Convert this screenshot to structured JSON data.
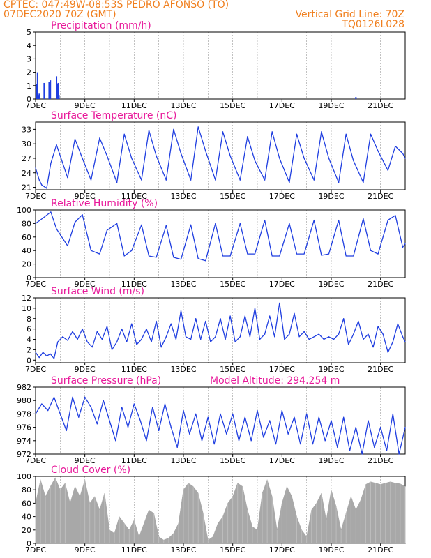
{
  "header": {
    "line1": "CPTEC:  047:49W-08:53S  PEDRO AFONSO (TO)",
    "line2_left": "07DEC2020 70Z (GMT)",
    "line2_right": "Vertical Grid Line: 70Z",
    "code": "TQ0126L028"
  },
  "colors": {
    "header": "#f07f1e",
    "title": "#e8199a",
    "line": "#1f3ee0",
    "cloud": "#a8a8a8",
    "axis": "#000000",
    "grid": "#999999"
  },
  "chart_data": [
    {
      "id": "precip",
      "type": "bar",
      "title": "Precipitation (mm/h)",
      "ylim": [
        0,
        5
      ],
      "yticks": [
        0,
        1,
        2,
        3,
        4,
        5
      ],
      "x_range_days": [
        7,
        22
      ],
      "xtick_labels": [
        "7DEC",
        "9DEC",
        "11DEC",
        "13DEC",
        "15DEC",
        "17DEC",
        "19DEC",
        "21DEC"
      ],
      "x": [
        7.05,
        7.08,
        7.12,
        7.15,
        7.35,
        7.55,
        7.6,
        7.85,
        7.88,
        7.92,
        7.95,
        20.0
      ],
      "values": [
        1.1,
        2.0,
        0.3,
        0.4,
        1.2,
        1.3,
        1.4,
        1.7,
        1.1,
        1.2,
        0.3,
        0.15
      ]
    },
    {
      "id": "temp",
      "type": "line",
      "title": "Surface Temperature (nC)",
      "ylim": [
        20.5,
        34.5
      ],
      "yticks": [
        21,
        24,
        27,
        30,
        33
      ],
      "x_range_days": [
        7,
        22
      ],
      "xtick_labels": [
        "7DEC",
        "9DEC",
        "11DEC",
        "13DEC",
        "15DEC",
        "17DEC",
        "19DEC",
        "21DEC"
      ],
      "x": [
        7.0,
        7.15,
        7.25,
        7.45,
        7.62,
        7.85,
        8.3,
        8.6,
        8.9,
        9.25,
        9.6,
        9.9,
        10.3,
        10.6,
        10.9,
        11.3,
        11.6,
        11.9,
        12.3,
        12.6,
        12.9,
        13.3,
        13.6,
        13.9,
        14.3,
        14.6,
        14.9,
        15.3,
        15.6,
        15.9,
        16.3,
        16.6,
        16.9,
        17.3,
        17.6,
        17.9,
        18.3,
        18.6,
        18.9,
        19.3,
        19.6,
        19.9,
        20.3,
        20.6,
        20.9,
        21.3,
        21.6,
        21.9,
        22.0
      ],
      "values": [
        25.0,
        22.5,
        21.5,
        20.8,
        26.0,
        29.8,
        23.0,
        31.0,
        27.0,
        22.5,
        31.2,
        27.5,
        22.0,
        32.0,
        27.0,
        22.5,
        32.8,
        27.5,
        22.5,
        33.0,
        28.0,
        22.5,
        33.5,
        28.5,
        22.5,
        32.5,
        27.5,
        22.5,
        31.5,
        26.5,
        22.5,
        32.5,
        27.0,
        22.0,
        32.0,
        27.0,
        22.5,
        32.5,
        27.0,
        22.0,
        32.0,
        26.5,
        22.0,
        32.0,
        28.5,
        24.5,
        29.5,
        28.0,
        27.0
      ]
    },
    {
      "id": "rh",
      "type": "line",
      "title": "Relative Humidity (%)",
      "ylim": [
        0,
        100
      ],
      "yticks": [
        0,
        20,
        40,
        60,
        80,
        100
      ],
      "x_range_days": [
        7,
        22
      ],
      "xtick_labels": [
        "7DEC",
        "9DEC",
        "11DEC",
        "13DEC",
        "15DEC",
        "17DEC",
        "19DEC",
        "21DEC"
      ],
      "x": [
        7.0,
        7.3,
        7.62,
        7.85,
        8.3,
        8.6,
        8.9,
        9.25,
        9.6,
        9.9,
        10.3,
        10.6,
        10.9,
        11.3,
        11.6,
        11.9,
        12.3,
        12.6,
        12.9,
        13.3,
        13.6,
        13.9,
        14.3,
        14.6,
        14.9,
        15.3,
        15.6,
        15.9,
        16.3,
        16.6,
        16.9,
        17.3,
        17.6,
        17.9,
        18.3,
        18.6,
        18.9,
        19.3,
        19.6,
        19.9,
        20.3,
        20.6,
        20.9,
        21.3,
        21.6,
        21.9,
        22.0
      ],
      "values": [
        80,
        88,
        97,
        72,
        47,
        82,
        93,
        40,
        35,
        70,
        80,
        32,
        40,
        78,
        32,
        30,
        77,
        30,
        27,
        78,
        28,
        25,
        80,
        32,
        32,
        80,
        35,
        35,
        85,
        32,
        32,
        80,
        35,
        35,
        85,
        33,
        35,
        85,
        32,
        32,
        87,
        40,
        35,
        85,
        92,
        45,
        50
      ]
    },
    {
      "id": "wind",
      "type": "line",
      "title": "Surface Wind (m/s)",
      "ylim": [
        -0.5,
        12
      ],
      "yticks": [
        0,
        2,
        4,
        6,
        8,
        10,
        12
      ],
      "x_range_days": [
        7,
        22
      ],
      "xtick_labels": [
        "7DEC",
        "9DEC",
        "11DEC",
        "13DEC",
        "15DEC",
        "17DEC",
        "19DEC",
        "21DEC"
      ],
      "x": [
        7.0,
        7.15,
        7.3,
        7.45,
        7.6,
        7.75,
        7.9,
        8.1,
        8.3,
        8.5,
        8.7,
        8.9,
        9.1,
        9.3,
        9.5,
        9.7,
        9.9,
        10.1,
        10.3,
        10.5,
        10.7,
        10.9,
        11.1,
        11.3,
        11.5,
        11.7,
        11.9,
        12.1,
        12.3,
        12.5,
        12.7,
        12.9,
        13.1,
        13.3,
        13.5,
        13.7,
        13.9,
        14.1,
        14.3,
        14.5,
        14.7,
        14.9,
        15.1,
        15.3,
        15.5,
        15.7,
        15.9,
        16.1,
        16.3,
        16.5,
        16.7,
        16.9,
        17.1,
        17.3,
        17.5,
        17.7,
        17.9,
        18.1,
        18.3,
        18.5,
        18.7,
        18.9,
        19.1,
        19.3,
        19.5,
        19.7,
        19.9,
        20.1,
        20.3,
        20.5,
        20.7,
        20.9,
        21.1,
        21.3,
        21.5,
        21.7,
        21.9,
        22.0
      ],
      "values": [
        1.5,
        0.5,
        1.5,
        0.8,
        1.2,
        0.3,
        3.5,
        4.5,
        3.8,
        5.5,
        4.0,
        6.0,
        3.5,
        2.5,
        5.5,
        4.0,
        6.5,
        2.0,
        3.5,
        6.0,
        3.5,
        7.0,
        3.0,
        4.0,
        6.0,
        3.5,
        7.5,
        2.5,
        4.5,
        7.0,
        4.0,
        9.5,
        4.5,
        4.0,
        8.0,
        4.0,
        7.5,
        3.5,
        4.5,
        8.0,
        4.0,
        8.5,
        3.5,
        4.5,
        8.5,
        4.5,
        10.0,
        4.0,
        5.0,
        8.5,
        4.5,
        11.0,
        4.0,
        5.0,
        9.0,
        4.5,
        5.5,
        4.0,
        4.5,
        5.0,
        4.0,
        4.5,
        4.0,
        5.0,
        8.0,
        3.0,
        5.0,
        7.5,
        4.0,
        5.0,
        2.5,
        6.5,
        5.0,
        1.5,
        3.5,
        7.0,
        4.5,
        3.5
      ]
    },
    {
      "id": "pres",
      "type": "line",
      "title": "Surface Pressure (hPa)",
      "subtitle": "Model Altitude: 294.254 m",
      "ylim": [
        972,
        982
      ],
      "yticks": [
        972,
        974,
        976,
        978,
        980,
        982
      ],
      "x_range_days": [
        7,
        22
      ],
      "xtick_labels": [
        "7DEC",
        "9DEC",
        "11DEC",
        "13DEC",
        "15DEC",
        "17DEC",
        "19DEC",
        "21DEC"
      ],
      "x": [
        7.0,
        7.25,
        7.5,
        7.75,
        8.0,
        8.25,
        8.5,
        8.75,
        9.0,
        9.25,
        9.5,
        9.75,
        10.0,
        10.25,
        10.5,
        10.75,
        11.0,
        11.25,
        11.5,
        11.75,
        12.0,
        12.25,
        12.5,
        12.75,
        13.0,
        13.25,
        13.5,
        13.75,
        14.0,
        14.25,
        14.5,
        14.75,
        15.0,
        15.25,
        15.5,
        15.75,
        16.0,
        16.25,
        16.5,
        16.75,
        17.0,
        17.25,
        17.5,
        17.75,
        18.0,
        18.25,
        18.5,
        18.75,
        19.0,
        19.25,
        19.5,
        19.75,
        20.0,
        20.25,
        20.5,
        20.75,
        21.0,
        21.25,
        21.5,
        21.75,
        22.0
      ],
      "values": [
        978.0,
        979.5,
        978.5,
        980.5,
        978.0,
        975.5,
        980.5,
        977.5,
        980.5,
        979.0,
        976.5,
        980.0,
        977.0,
        974.0,
        979.0,
        976.0,
        979.5,
        977.0,
        974.0,
        979.0,
        975.5,
        979.5,
        976.0,
        973.0,
        978.5,
        975.0,
        978.0,
        974.0,
        977.5,
        973.5,
        978.0,
        975.0,
        978.0,
        974.0,
        977.5,
        974.0,
        978.5,
        974.5,
        977.0,
        973.5,
        978.5,
        975.0,
        977.5,
        973.5,
        978.0,
        973.5,
        977.5,
        974.0,
        977.0,
        973.0,
        977.5,
        972.5,
        976.0,
        972.0,
        977.0,
        973.0,
        976.0,
        972.5,
        978.0,
        972.0,
        976.0
      ]
    },
    {
      "id": "cloud",
      "type": "area",
      "title": "Cloud Cover (%)",
      "ylim": [
        0,
        100
      ],
      "yticks": [
        0,
        20,
        40,
        60,
        80,
        100
      ],
      "x_range_days": [
        7,
        22
      ],
      "xtick_labels": [
        "7DEC",
        "9DEC",
        "11DEC",
        "13DEC",
        "15DEC",
        "17DEC",
        "19DEC",
        "21DEC"
      ],
      "x": [
        7.0,
        7.2,
        7.4,
        7.6,
        7.8,
        8.0,
        8.2,
        8.4,
        8.6,
        8.8,
        9.0,
        9.2,
        9.4,
        9.6,
        9.8,
        10.0,
        10.2,
        10.4,
        10.6,
        10.8,
        11.0,
        11.2,
        11.4,
        11.6,
        11.8,
        12.0,
        12.2,
        12.4,
        12.6,
        12.8,
        13.0,
        13.2,
        13.4,
        13.6,
        13.8,
        14.0,
        14.2,
        14.4,
        14.6,
        14.8,
        15.0,
        15.2,
        15.4,
        15.6,
        15.8,
        16.0,
        16.2,
        16.4,
        16.6,
        16.8,
        17.0,
        17.2,
        17.4,
        17.6,
        17.8,
        18.0,
        18.2,
        18.4,
        18.6,
        18.8,
        19.0,
        19.2,
        19.4,
        19.6,
        19.8,
        20.0,
        20.2,
        20.4,
        20.6,
        20.8,
        21.0,
        21.2,
        21.4,
        21.6,
        21.8,
        22.0
      ],
      "values": [
        60,
        95,
        70,
        85,
        98,
        80,
        90,
        60,
        85,
        70,
        95,
        60,
        70,
        50,
        75,
        20,
        15,
        40,
        30,
        20,
        35,
        10,
        30,
        50,
        45,
        10,
        5,
        8,
        15,
        30,
        80,
        90,
        85,
        75,
        45,
        5,
        10,
        30,
        40,
        60,
        70,
        90,
        85,
        50,
        25,
        20,
        75,
        95,
        70,
        20,
        60,
        85,
        70,
        40,
        20,
        10,
        50,
        60,
        75,
        35,
        80,
        55,
        20,
        45,
        70,
        50,
        65,
        88,
        92,
        90,
        88,
        90,
        92,
        90,
        89,
        85
      ]
    }
  ]
}
